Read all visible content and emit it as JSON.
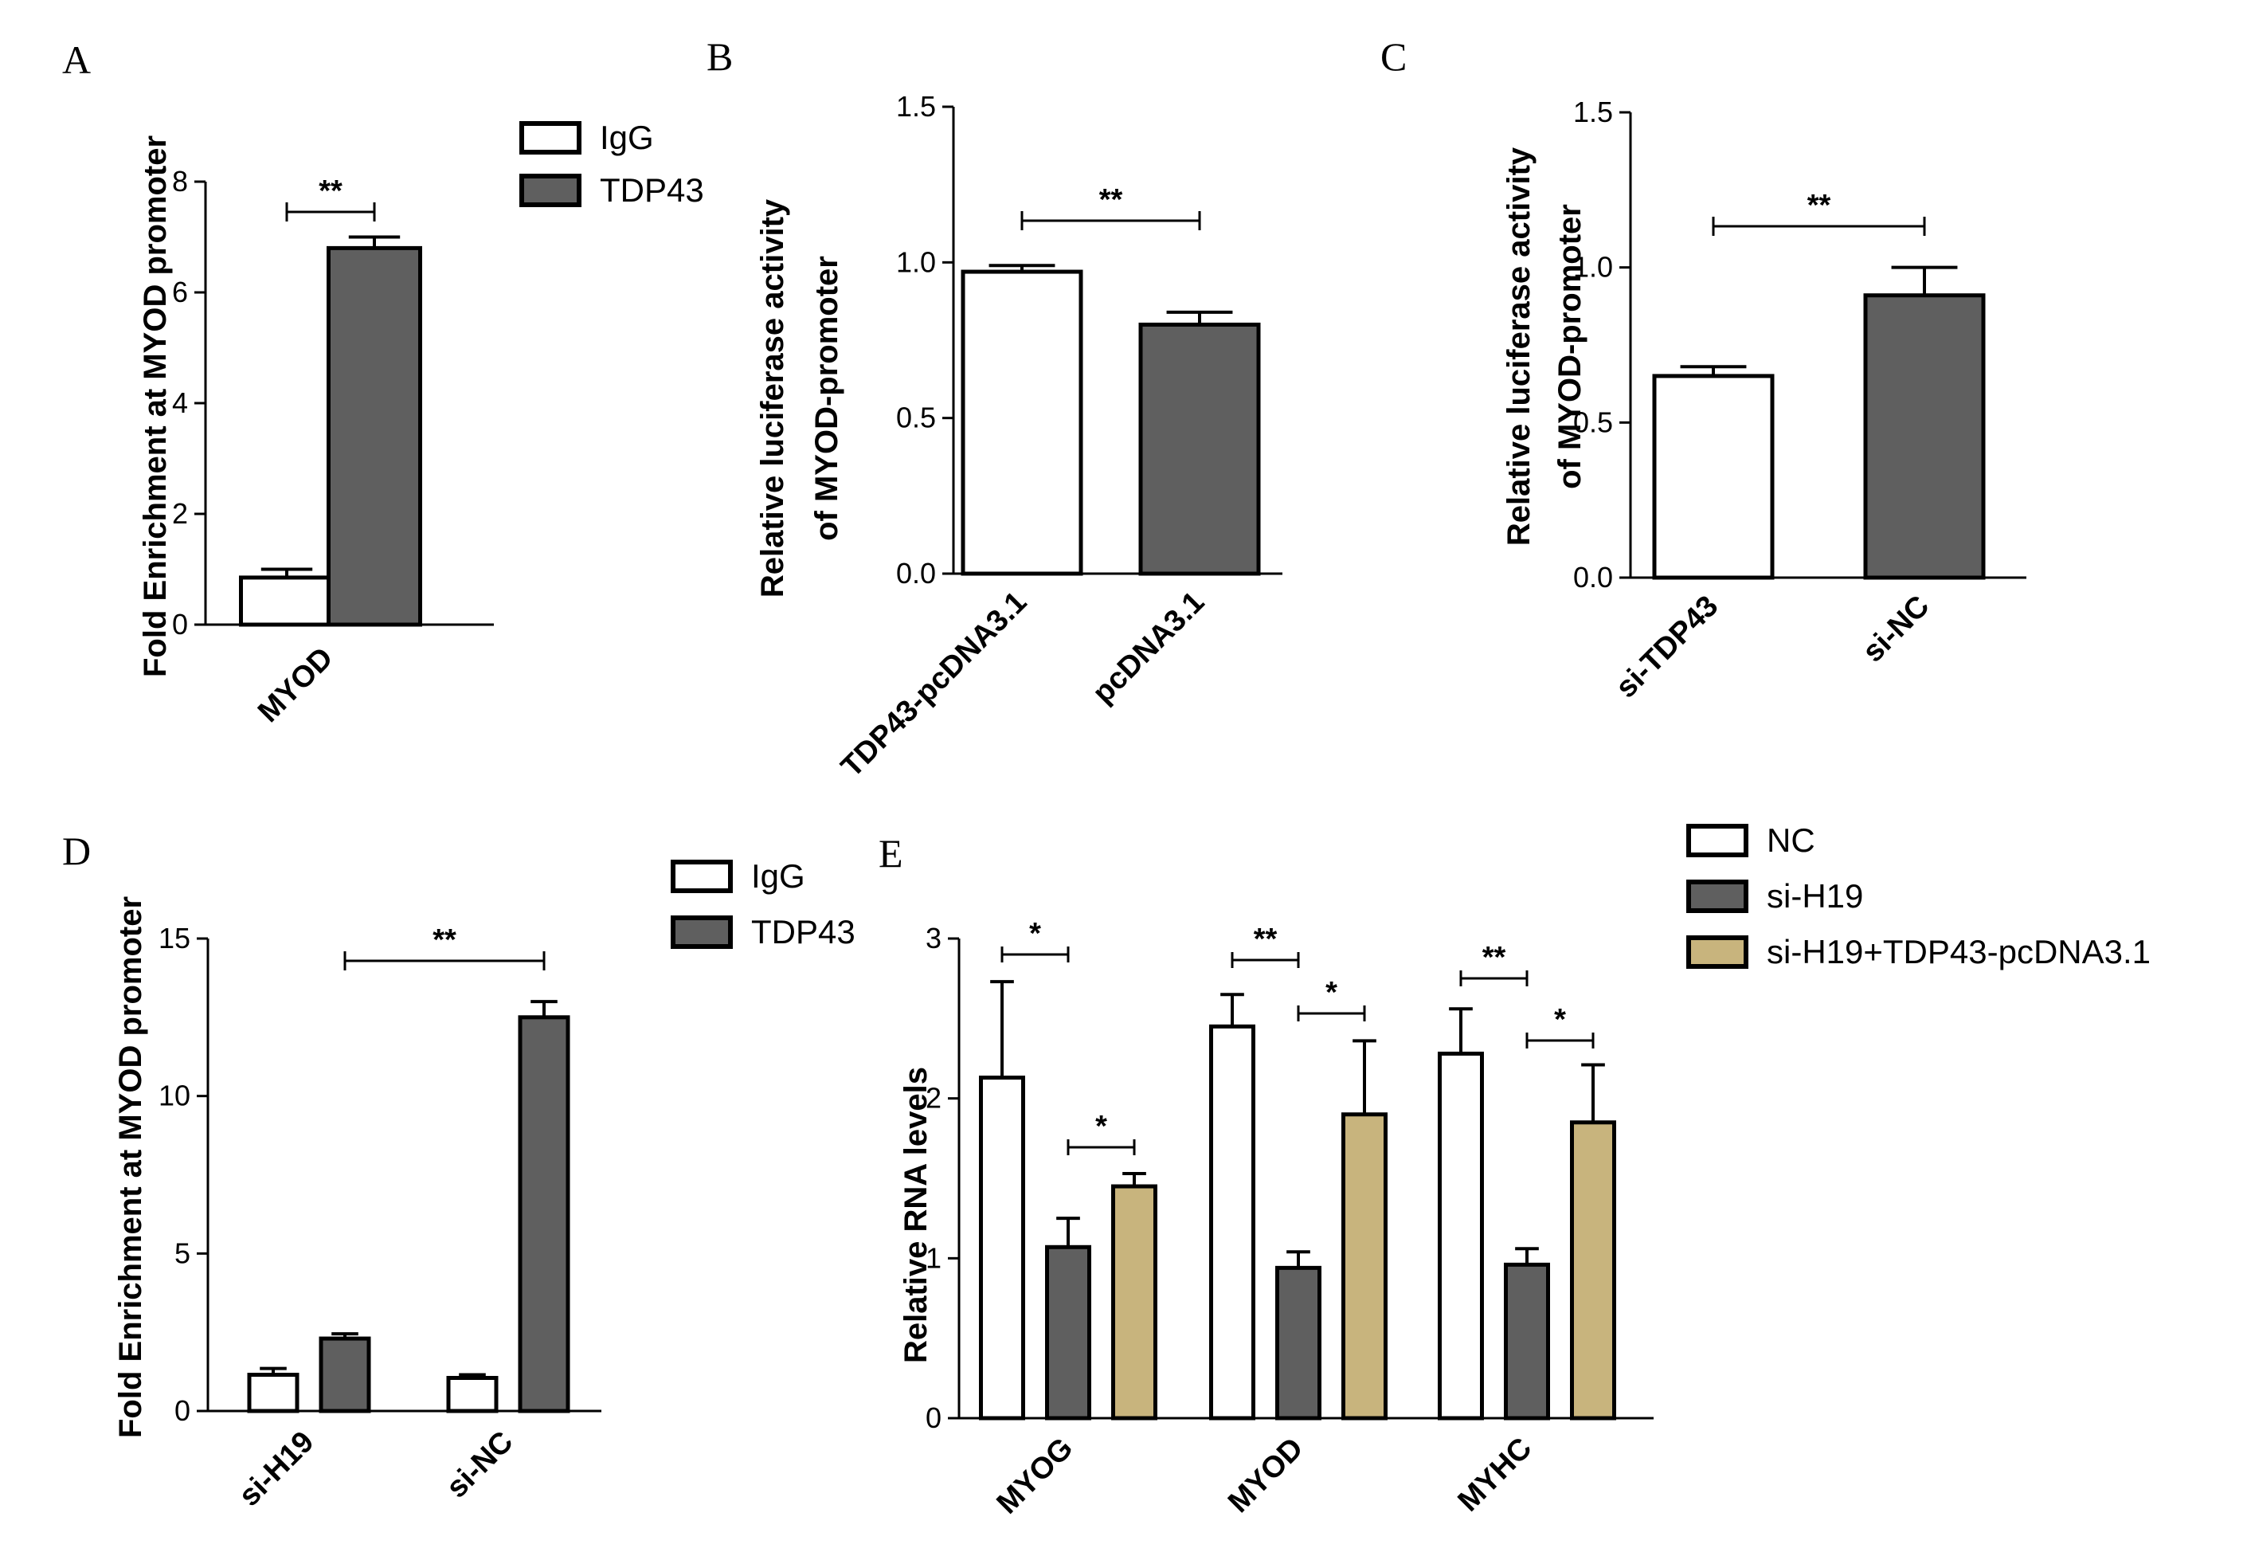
{
  "chart_data": [
    {
      "panel": "A",
      "type": "bar",
      "ylabel": "Fold Enrichment at  MYOD promoter",
      "ylim": [
        0,
        8
      ],
      "yticks": [
        "0",
        "2",
        "4",
        "6",
        "8"
      ],
      "categories": [
        "MYOD"
      ],
      "legend": [
        {
          "name": "IgG",
          "color": "#ffffff"
        },
        {
          "name": "TDP43",
          "color": "#5f5f5f"
        }
      ],
      "series": [
        {
          "name": "IgG",
          "values": [
            0.85
          ],
          "errors": [
            0.15
          ],
          "color": "#ffffff"
        },
        {
          "name": "TDP43",
          "values": [
            6.8
          ],
          "errors": [
            0.2
          ],
          "color": "#5f5f5f"
        }
      ],
      "significance": [
        {
          "label": "**"
        }
      ]
    },
    {
      "panel": "B",
      "type": "bar",
      "ylabel": "Relative luciferase activity of MYOD-promoter",
      "ylabel_lines": [
        "Relative luciferase activity",
        "of MYOD-promoter"
      ],
      "ylim": [
        0,
        1.5
      ],
      "yticks": [
        "0.0",
        "0.5",
        "1.0",
        "1.5"
      ],
      "categories": [
        "TDP43-pcDNA3.1",
        "pcDNA3.1"
      ],
      "series": [
        {
          "name": "values",
          "values": [
            0.97,
            0.8
          ],
          "errors": [
            0.02,
            0.04
          ],
          "colors": [
            "#ffffff",
            "#5f5f5f"
          ]
        }
      ],
      "significance": [
        {
          "label": "**"
        }
      ]
    },
    {
      "panel": "C",
      "type": "bar",
      "ylabel": "Relative luciferase activity of MYOD-promoter",
      "ylabel_lines": [
        "Relative luciferase activity",
        "of MYOD-promoter"
      ],
      "ylim": [
        0,
        1.5
      ],
      "yticks": [
        "0.0",
        "0.5",
        "1.0",
        "1.5"
      ],
      "categories": [
        "si-TDP43",
        "si-NC"
      ],
      "series": [
        {
          "name": "values",
          "values": [
            0.65,
            0.91
          ],
          "errors": [
            0.03,
            0.09
          ],
          "colors": [
            "#ffffff",
            "#5f5f5f"
          ]
        }
      ],
      "significance": [
        {
          "label": "**"
        }
      ]
    },
    {
      "panel": "D",
      "type": "bar",
      "ylabel": "Fold Enrichment at  MYOD promoter",
      "ylim": [
        0,
        15
      ],
      "yticks": [
        "0",
        "5",
        "10",
        "15"
      ],
      "categories": [
        "si-H19",
        "si-NC"
      ],
      "legend": [
        {
          "name": "IgG",
          "color": "#ffffff"
        },
        {
          "name": "TDP43",
          "color": "#5f5f5f"
        }
      ],
      "series": [
        {
          "name": "IgG",
          "values": [
            1.15,
            1.05
          ],
          "errors": [
            0.2,
            0.1
          ],
          "color": "#ffffff"
        },
        {
          "name": "TDP43",
          "values": [
            2.3,
            12.5
          ],
          "errors": [
            0.15,
            0.5
          ],
          "color": "#5f5f5f"
        }
      ],
      "significance": [
        {
          "label": "**"
        }
      ]
    },
    {
      "panel": "E",
      "type": "bar",
      "ylabel": "Relative RNA levels",
      "ylim": [
        0,
        3
      ],
      "yticks": [
        "0",
        "1",
        "2",
        "3"
      ],
      "categories": [
        "MYOG",
        "MYOD",
        "MYHC"
      ],
      "legend": [
        {
          "name": "NC",
          "color": "#ffffff"
        },
        {
          "name": "si-H19",
          "color": "#5f5f5f"
        },
        {
          "name": "si-H19+TDP43-pcDNA3.1",
          "color": "#c8b47d"
        }
      ],
      "series": [
        {
          "name": "NC",
          "values": [
            2.13,
            2.45,
            2.28
          ],
          "errors": [
            0.6,
            0.2,
            0.28
          ],
          "color": "#ffffff"
        },
        {
          "name": "si-H19",
          "values": [
            1.07,
            0.94,
            0.96
          ],
          "errors": [
            0.18,
            0.1,
            0.1
          ],
          "color": "#5f5f5f"
        },
        {
          "name": "si-H19+TDP43-pcDNA3.1",
          "values": [
            1.45,
            1.9,
            1.85
          ],
          "errors": [
            0.08,
            0.46,
            0.36
          ],
          "color": "#c8b47d"
        }
      ],
      "significance": [
        {
          "label": "*"
        },
        {
          "label": "*"
        },
        {
          "label": "**"
        },
        {
          "label": "*"
        },
        {
          "label": "**"
        },
        {
          "label": "*"
        }
      ]
    }
  ]
}
